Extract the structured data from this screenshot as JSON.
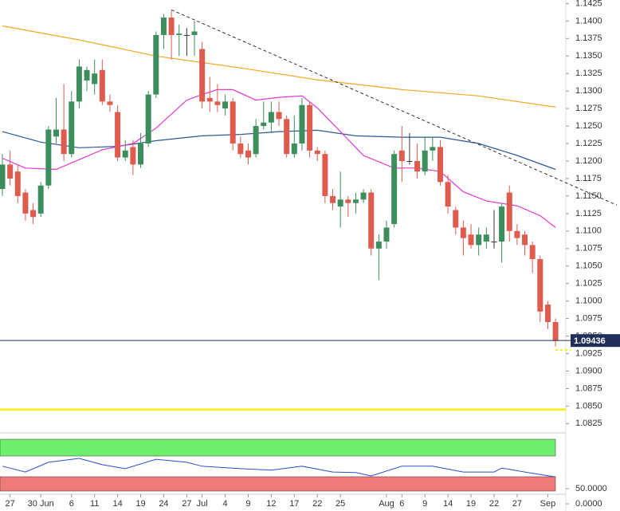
{
  "chart_data": {
    "type": "candlestick",
    "categories": [
      null,
      "27",
      null,
      null,
      null,
      "30 Jun",
      null,
      null,
      null,
      "6",
      null,
      null,
      "11",
      null,
      null,
      "14",
      null,
      null,
      "19",
      null,
      null,
      "24",
      null,
      null,
      "27",
      null,
      "Jul",
      null,
      null,
      "4",
      null,
      null,
      "9",
      null,
      null,
      "12",
      null,
      null,
      "17",
      null,
      null,
      "22",
      null,
      null,
      "25",
      null,
      null,
      null,
      null,
      null,
      "Aug",
      null,
      "6",
      null,
      null,
      "9",
      null,
      null,
      "14",
      null,
      null,
      "19",
      null,
      null,
      "22",
      null,
      null,
      "27",
      null,
      null,
      null,
      "Sep",
      null
    ],
    "open": [
      1.116,
      1.1195,
      1.1185,
      1.1155,
      1.113,
      1.1125,
      1.1165,
      1.1235,
      1.1245,
      1.121,
      1.1285,
      1.1315,
      1.131,
      1.133,
      1.1285,
      1.127,
      1.1205,
      1.122,
      1.1195,
      1.1225,
      1.1295,
      1.138,
      1.1405,
      1.138,
      1.138,
      1.138,
      1.136,
      1.129,
      1.1285,
      1.1275,
      1.1285,
      1.1225,
      1.1215,
      1.121,
      1.125,
      1.1255,
      1.127,
      1.126,
      1.121,
      1.1225,
      1.128,
      1.1215,
      1.121,
      1.115,
      1.1135,
      1.1145,
      1.114,
      1.1145,
      1.1155,
      1.1075,
      1.1085,
      1.111,
      1.1215,
      1.12,
      1.12,
      1.1185,
      1.1215,
      1.122,
      1.117,
      1.113,
      1.1105,
      1.1095,
      1.108,
      1.1085,
      1.1085,
      1.1085,
      1.1155,
      1.11,
      1.1095,
      1.108,
      1.106,
      1.0995,
      1.097
    ],
    "high": [
      1.121,
      1.1215,
      1.1195,
      1.116,
      1.114,
      1.117,
      1.125,
      1.129,
      1.131,
      1.13,
      1.1345,
      1.1335,
      1.1345,
      1.1345,
      1.1295,
      1.128,
      1.123,
      1.123,
      1.124,
      1.13,
      1.1385,
      1.141,
      1.1415,
      1.1395,
      1.139,
      1.14,
      1.137,
      1.132,
      1.131,
      1.1295,
      1.129,
      1.1235,
      1.1225,
      1.126,
      1.1285,
      1.1285,
      1.1285,
      1.1265,
      1.1265,
      1.129,
      1.1285,
      1.122,
      1.1215,
      1.116,
      1.1185,
      1.115,
      1.1155,
      1.116,
      1.116,
      1.1095,
      1.1115,
      1.1215,
      1.125,
      1.124,
      1.1225,
      1.1235,
      1.1235,
      1.123,
      1.118,
      1.1135,
      1.1115,
      1.111,
      1.1105,
      1.1105,
      1.113,
      1.114,
      1.1165,
      1.111,
      1.11,
      1.1085,
      1.1065,
      1.1,
      1.0975
    ],
    "low": [
      1.115,
      1.1165,
      1.114,
      1.1115,
      1.111,
      1.112,
      1.116,
      1.1225,
      1.12,
      1.1205,
      1.1275,
      1.13,
      1.1295,
      1.128,
      1.127,
      1.12,
      1.12,
      1.118,
      1.119,
      1.122,
      1.129,
      1.136,
      1.1345,
      1.135,
      1.135,
      1.135,
      1.1275,
      1.127,
      1.127,
      1.1265,
      1.1215,
      1.1205,
      1.1195,
      1.1205,
      1.1245,
      1.124,
      1.125,
      1.1205,
      1.1205,
      1.1215,
      1.1205,
      1.12,
      1.114,
      1.113,
      1.1105,
      1.112,
      1.1125,
      1.114,
      1.1065,
      1.103,
      1.1075,
      1.1105,
      1.117,
      1.1195,
      1.1175,
      1.118,
      1.12,
      1.1165,
      1.1125,
      1.1095,
      1.1065,
      1.1075,
      1.1065,
      1.1075,
      1.1075,
      1.1055,
      1.1085,
      1.108,
      1.1065,
      1.104,
      1.097,
      1.096,
      1.0935
    ],
    "close": [
      1.1195,
      1.1175,
      1.115,
      1.1125,
      1.112,
      1.1165,
      1.1245,
      1.1245,
      1.121,
      1.1285,
      1.1335,
      1.133,
      1.1325,
      1.1285,
      1.128,
      1.1205,
      1.1215,
      1.1195,
      1.1225,
      1.1295,
      1.138,
      1.1405,
      1.138,
      1.1382,
      1.138,
      1.1385,
      1.1285,
      1.1285,
      1.128,
      1.1285,
      1.1225,
      1.121,
      1.1205,
      1.125,
      1.1255,
      1.127,
      1.126,
      1.121,
      1.1225,
      1.128,
      1.1215,
      1.121,
      1.115,
      1.114,
      1.1145,
      1.114,
      1.1145,
      1.1155,
      1.1075,
      1.1085,
      1.1105,
      1.121,
      1.12,
      1.12,
      1.1185,
      1.1215,
      1.122,
      1.117,
      1.1135,
      1.1105,
      1.109,
      1.108,
      1.1095,
      1.1095,
      1.1085,
      1.1135,
      1.11,
      1.109,
      1.108,
      1.106,
      1.0985,
      1.097,
      1.0943
    ],
    "up_color": "#3c8f5d",
    "down_color": "#de5b4e",
    "lines": [
      {
        "color": "#f5a623",
        "x": [
          0,
          10,
          20,
          31,
          41,
          52,
          62,
          72
        ],
        "values": [
          1.1393,
          1.1373,
          1.135,
          1.1333,
          1.1316,
          1.1302,
          1.1293,
          1.1277
        ]
      },
      {
        "color": "#2b5797",
        "x": [
          0,
          5,
          10,
          15,
          20,
          26,
          31,
          36,
          41,
          46,
          52,
          57,
          62,
          67,
          72
        ],
        "values": [
          1.1242,
          1.1227,
          1.1219,
          1.1221,
          1.1229,
          1.1236,
          1.1238,
          1.1242,
          1.1244,
          1.1236,
          1.1234,
          1.1234,
          1.1225,
          1.1208,
          1.1188
        ]
      },
      {
        "color": "#e535d6",
        "x": [
          0,
          3,
          7,
          10,
          13,
          17,
          20,
          24,
          26,
          28,
          30,
          33,
          36,
          39,
          41,
          44,
          47,
          51,
          54,
          57,
          60,
          63,
          67,
          70,
          72
        ],
        "values": [
          1.1204,
          1.119,
          1.1188,
          1.1202,
          1.1216,
          1.1225,
          1.1247,
          1.1287,
          1.1295,
          1.1302,
          1.1302,
          1.1287,
          1.1291,
          1.1293,
          1.1276,
          1.1242,
          1.1208,
          1.119,
          1.119,
          1.1185,
          1.1156,
          1.1143,
          1.1136,
          1.1122,
          1.1105
        ]
      }
    ],
    "trendline": {
      "x": [
        22,
        80
      ],
      "values": [
        1.1416,
        1.1137
      ]
    },
    "last_price": 1.09436,
    "last_price_color": "#1f2f5c",
    "support_line": {
      "value": 1.0845,
      "color": "#ffee00"
    },
    "target_line": {
      "value": 1.093,
      "x": [
        72,
        74
      ],
      "color": "#ffee00"
    },
    "ylim": [
      1.0814,
      1.143
    ],
    "yticks": [
      1.0825,
      {
        "value": 1.085,
        "label": "1.0850"
      },
      1.0875,
      {
        "value": 1.09,
        "label": "1.0900"
      },
      1.0925,
      {
        "value": 1.095,
        "label": "1.0950"
      },
      1.0975,
      {
        "value": 1.1,
        "label": "1.1000"
      },
      1.1025,
      {
        "value": 1.105,
        "label": "1.1050"
      },
      1.1075,
      {
        "value": 1.11,
        "label": "1.1100"
      },
      1.1125,
      {
        "value": 1.115,
        "label": "1.1150"
      },
      1.1175,
      {
        "value": 1.12,
        "label": "1.1200"
      },
      1.1225,
      {
        "value": 1.125,
        "label": "1.1250"
      },
      1.1275,
      {
        "value": 1.13,
        "label": "1.1300"
      },
      1.1325,
      {
        "value": 1.135,
        "label": "1.1350"
      },
      1.1375,
      {
        "value": 1.14,
        "label": "1.1400"
      },
      1.1425
    ],
    "grid": false,
    "indicator": {
      "color": "#2b4fc7",
      "ylim": [
        0,
        213
      ],
      "yticks": [
        {
          "value": 0,
          "label": "0.0000"
        },
        {
          "value": 50,
          "label": "50.0000"
        }
      ],
      "x": [
        0,
        3,
        6,
        10,
        13,
        16,
        20,
        24,
        26,
        31,
        35,
        39,
        43,
        46,
        48,
        52,
        56,
        60,
        64,
        65,
        68,
        72
      ],
      "values": [
        124,
        105,
        137,
        150,
        129,
        116,
        147,
        137,
        124,
        116,
        111,
        124,
        105,
        103,
        92,
        124,
        124,
        105,
        105,
        118,
        105,
        89
      ]
    }
  }
}
